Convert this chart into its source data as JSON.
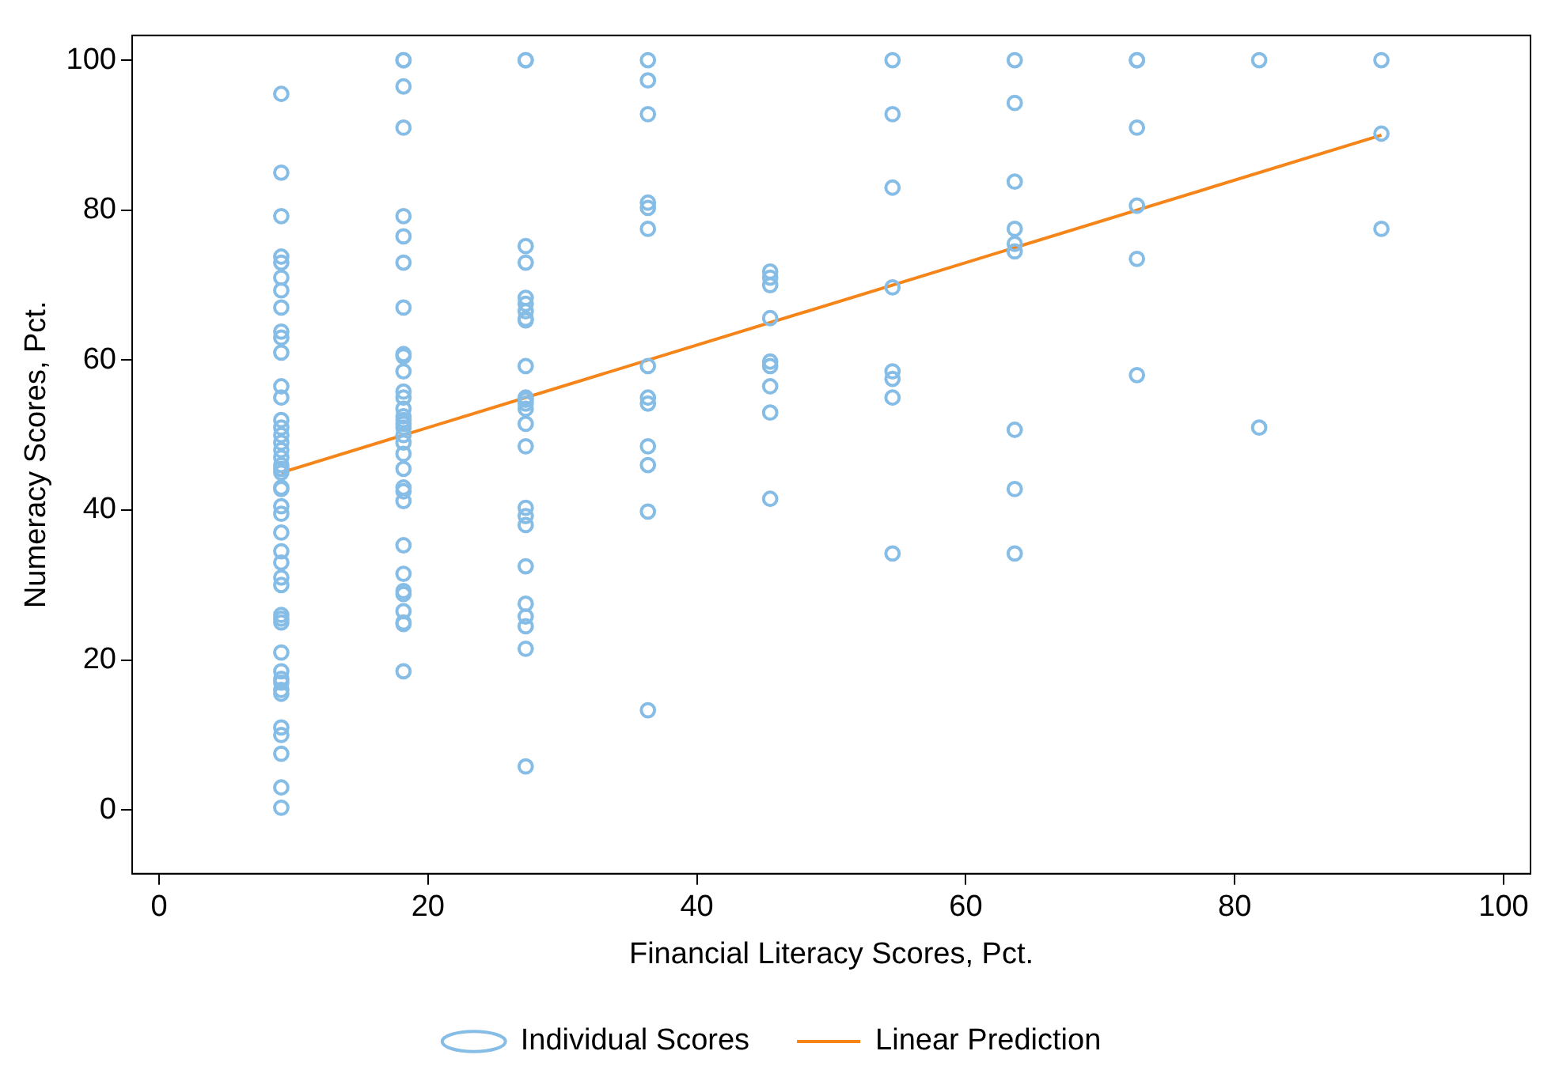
{
  "chart_data": {
    "type": "scatter",
    "xlabel": "Financial Literacy Scores, Pct.",
    "ylabel": "Numeracy Scores, Pct.",
    "xlim": [
      -2,
      102
    ],
    "ylim": [
      -8.5,
      103.3
    ],
    "xticks": [
      0,
      20,
      40,
      60,
      80,
      100
    ],
    "yticks": [
      0,
      20,
      40,
      60,
      80,
      100
    ],
    "grid": false,
    "legend": "bottom",
    "series": [
      {
        "name": "Individual Scores",
        "color": "#86bde6",
        "marker": "circle",
        "x": [
          9.09,
          9.09,
          9.09,
          9.09,
          9.09,
          9.09,
          9.09,
          9.09,
          9.09,
          9.09,
          9.09,
          9.09,
          9.09,
          9.09,
          9.09,
          9.09,
          9.09,
          9.09,
          9.09,
          9.09,
          9.09,
          9.09,
          9.09,
          9.09,
          9.09,
          9.09,
          9.09,
          9.09,
          9.09,
          9.09,
          9.09,
          9.09,
          9.09,
          9.09,
          9.09,
          9.09,
          9.09,
          9.09,
          9.09,
          9.09,
          9.09,
          9.09,
          9.09,
          9.09,
          9.09,
          18.18,
          18.18,
          18.18,
          18.18,
          18.18,
          18.18,
          18.18,
          18.18,
          18.18,
          18.18,
          18.18,
          18.18,
          18.18,
          18.18,
          18.18,
          18.18,
          18.18,
          18.18,
          18.18,
          18.18,
          18.18,
          18.18,
          18.18,
          18.18,
          18.18,
          18.18,
          18.18,
          18.18,
          18.18,
          18.18,
          18.18,
          18.18,
          18.18,
          27.27,
          27.27,
          27.27,
          27.27,
          27.27,
          27.27,
          27.27,
          27.27,
          27.27,
          27.27,
          27.27,
          27.27,
          27.27,
          27.27,
          27.27,
          27.27,
          27.27,
          27.27,
          27.27,
          27.27,
          27.27,
          27.27,
          27.27,
          27.27,
          27.27,
          36.36,
          36.36,
          36.36,
          36.36,
          36.36,
          36.36,
          36.36,
          36.36,
          36.36,
          36.36,
          36.36,
          36.36,
          36.36,
          45.45,
          45.45,
          45.45,
          45.45,
          45.45,
          45.45,
          45.45,
          45.45,
          45.45,
          54.55,
          54.55,
          54.55,
          54.55,
          54.55,
          54.55,
          54.55,
          54.55,
          63.64,
          63.64,
          63.64,
          63.64,
          63.64,
          63.64,
          63.64,
          63.64,
          63.64,
          72.73,
          72.73,
          72.73,
          72.73,
          72.73,
          72.73,
          81.82,
          81.82,
          90.91,
          90.91,
          90.91
        ],
        "values": [
          95.5,
          85,
          79.2,
          73.8,
          73,
          71,
          69.3,
          67,
          63.8,
          63,
          61,
          56.5,
          55,
          52,
          51,
          50,
          49,
          48,
          47,
          46,
          45.5,
          45,
          43,
          42.8,
          40.5,
          39.5,
          37,
          34.5,
          33,
          31,
          30,
          26,
          25.5,
          25,
          21,
          18.5,
          17.5,
          17,
          16,
          15.5,
          11,
          10,
          7.5,
          3,
          0.3,
          100,
          100,
          96.5,
          91,
          79.2,
          76.5,
          73,
          67,
          60.8,
          60.5,
          58.5,
          55.8,
          55,
          53.5,
          52.5,
          52,
          51.5,
          51,
          50,
          49,
          47.5,
          45.5,
          43,
          42.5,
          41.2,
          35.3,
          31.5,
          29.2,
          28.8,
          26.5,
          25,
          24.8,
          18.5,
          100,
          100,
          75.2,
          73,
          68.3,
          67.5,
          66.5,
          65.5,
          65.3,
          59.2,
          55,
          54.7,
          54.2,
          53.5,
          51.5,
          48.5,
          40.3,
          39.2,
          38,
          32.5,
          27.5,
          25.8,
          24.5,
          21.5,
          5.8,
          100,
          97.3,
          92.8,
          81,
          80.3,
          77.5,
          59.2,
          55,
          54.2,
          48.5,
          46,
          39.8,
          13.3,
          71.8,
          71,
          70,
          65.6,
          59.8,
          59.2,
          56.5,
          53,
          41.5,
          100,
          92.8,
          83,
          69.7,
          58.5,
          57.5,
          55,
          34.2,
          100,
          94.3,
          83.8,
          77.5,
          75.5,
          74.5,
          50.7,
          42.8,
          34.2,
          100,
          100,
          91,
          80.6,
          73.5,
          58,
          100,
          51,
          100,
          90.2,
          77.5
        ]
      },
      {
        "name": "Linear Prediction",
        "type": "line",
        "color": "#f58518",
        "marker": "none",
        "line_style": "solid",
        "x": [
          9.09,
          90.91
        ],
        "values": [
          45,
          90
        ]
      }
    ]
  }
}
